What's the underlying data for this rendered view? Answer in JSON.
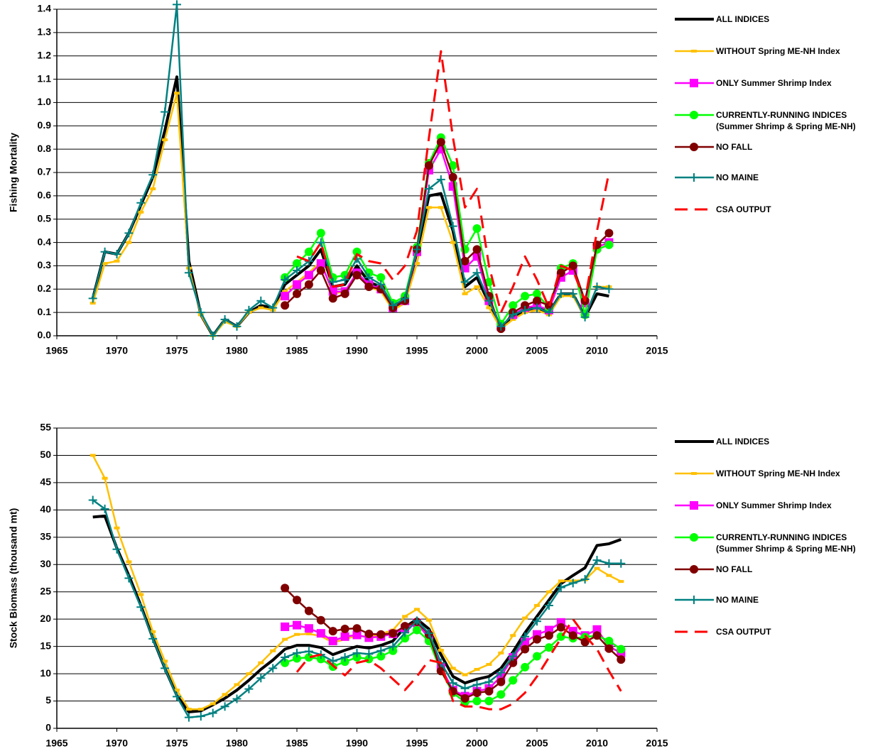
{
  "chart_data": [
    {
      "type": "line",
      "ylabel": "Fishing Mortality",
      "x": [
        1968,
        1969,
        1970,
        1971,
        1972,
        1973,
        1974,
        1975,
        1976,
        1977,
        1978,
        1979,
        1980,
        1981,
        1982,
        1983,
        1984,
        1985,
        1986,
        1987,
        1988,
        1989,
        1990,
        1991,
        1992,
        1993,
        1994,
        1995,
        1996,
        1997,
        1998,
        1999,
        2000,
        2001,
        2002,
        2003,
        2004,
        2005,
        2006,
        2007,
        2008,
        2009,
        2010,
        2011
      ],
      "xlim": [
        1965,
        2015
      ],
      "xticks": [
        1965,
        1970,
        1975,
        1980,
        1985,
        1990,
        1995,
        2000,
        2005,
        2010,
        2015
      ],
      "ylim": [
        0,
        1.4
      ],
      "yticks": [
        {
          "value": 0,
          "label": "0.0"
        },
        0.1,
        0.2,
        0.3,
        0.4,
        0.5,
        0.6,
        0.7,
        0.8,
        0.9,
        {
          "value": 1,
          "label": "1.0"
        },
        1.1,
        1.2,
        1.3,
        1.4
      ],
      "grid": true,
      "legend": "right",
      "series": [
        {
          "name": "ALL INDICES",
          "color": "#000000",
          "width": 4,
          "marker": null,
          "dashed": false,
          "values": [
            0.16,
            0.36,
            0.35,
            0.44,
            0.56,
            0.68,
            0.88,
            1.11,
            0.32,
            0.09,
            0.0,
            0.07,
            0.04,
            0.1,
            0.13,
            0.12,
            0.22,
            0.26,
            0.3,
            0.37,
            0.21,
            0.22,
            0.3,
            0.23,
            0.21,
            0.12,
            0.15,
            0.36,
            0.6,
            0.61,
            0.45,
            0.21,
            0.25,
            0.14,
            0.03,
            0.08,
            0.11,
            0.12,
            0.1,
            0.18,
            0.18,
            0.08,
            0.18,
            0.17
          ]
        },
        {
          "name": "WITHOUT Spring ME-NH Index",
          "color": "#ffc000",
          "width": 2.5,
          "marker": "dash",
          "dashed": false,
          "values": [
            0.14,
            0.31,
            0.32,
            0.4,
            0.53,
            0.63,
            0.84,
            1.04,
            0.29,
            0.09,
            0.0,
            0.06,
            0.04,
            0.1,
            0.12,
            0.11,
            0.19,
            0.23,
            0.27,
            0.32,
            0.18,
            0.19,
            0.26,
            0.21,
            0.19,
            0.11,
            0.14,
            0.31,
            0.55,
            0.55,
            0.4,
            0.18,
            0.21,
            0.12,
            0.03,
            0.07,
            0.1,
            0.11,
            0.09,
            0.17,
            0.17,
            0.08,
            0.21,
            0.21
          ]
        },
        {
          "name": "ONLY Summer Shrimp Index",
          "color": "#ff00ff",
          "width": 2.5,
          "marker": "square",
          "dashed": false,
          "values": [
            null,
            null,
            null,
            null,
            null,
            null,
            null,
            null,
            null,
            null,
            null,
            null,
            null,
            null,
            null,
            null,
            0.17,
            0.22,
            0.26,
            0.31,
            0.19,
            0.19,
            0.27,
            0.22,
            0.2,
            0.12,
            0.15,
            0.36,
            0.71,
            0.8,
            0.64,
            0.29,
            0.34,
            0.15,
            0.04,
            0.09,
            0.12,
            0.13,
            0.11,
            0.25,
            0.28,
            0.14,
            0.38,
            0.4
          ]
        },
        {
          "name": "CURRENTLY-RUNNING INDICES\n(Summer Shrimp & Spring ME-NH)",
          "color": "#00ff00",
          "width": 2.5,
          "marker": "circle",
          "dashed": false,
          "values": [
            null,
            null,
            null,
            null,
            null,
            null,
            null,
            null,
            null,
            null,
            null,
            null,
            null,
            null,
            null,
            null,
            0.25,
            0.31,
            0.36,
            0.44,
            0.25,
            0.26,
            0.36,
            0.27,
            0.25,
            0.14,
            0.17,
            0.38,
            0.74,
            0.85,
            0.73,
            0.37,
            0.46,
            0.23,
            0.05,
            0.13,
            0.17,
            0.18,
            0.12,
            0.29,
            0.31,
            0.09,
            0.37,
            0.39
          ]
        },
        {
          "name": "NO FALL",
          "color": "#800000",
          "width": 2.5,
          "marker": "circle",
          "dashed": false,
          "values": [
            null,
            null,
            null,
            null,
            null,
            null,
            null,
            null,
            null,
            null,
            null,
            null,
            null,
            null,
            null,
            null,
            0.13,
            0.18,
            0.22,
            0.28,
            0.16,
            0.18,
            0.26,
            0.21,
            0.2,
            0.12,
            0.15,
            0.37,
            0.73,
            0.83,
            0.68,
            0.32,
            0.37,
            0.17,
            0.03,
            0.1,
            0.13,
            0.15,
            0.13,
            0.27,
            0.3,
            0.15,
            0.39,
            0.44
          ]
        },
        {
          "name": "NO MAINE",
          "color": "#008080",
          "width": 2.5,
          "marker": "plus",
          "dashed": false,
          "values": [
            0.16,
            0.36,
            0.35,
            0.44,
            0.57,
            0.69,
            0.96,
            1.42,
            0.27,
            0.1,
            0.0,
            0.07,
            0.04,
            0.11,
            0.15,
            0.12,
            0.24,
            0.28,
            0.32,
            0.4,
            0.23,
            0.24,
            0.33,
            0.25,
            0.22,
            0.13,
            0.16,
            0.37,
            0.63,
            0.67,
            0.47,
            0.23,
            0.27,
            0.15,
            0.04,
            0.09,
            0.11,
            0.12,
            0.1,
            0.18,
            0.18,
            0.08,
            0.21,
            0.2
          ]
        },
        {
          "name": "CSA OUTPUT",
          "color": "#ff0000",
          "width": 3,
          "marker": null,
          "dashed": true,
          "values": [
            null,
            null,
            null,
            null,
            null,
            null,
            null,
            null,
            null,
            null,
            null,
            null,
            null,
            null,
            null,
            null,
            null,
            0.34,
            0.32,
            0.4,
            0.21,
            0.22,
            0.35,
            0.32,
            0.31,
            0.24,
            0.3,
            0.45,
            0.85,
            1.22,
            0.85,
            0.55,
            0.63,
            0.3,
            0.1,
            0.21,
            0.34,
            0.24,
            0.12,
            0.3,
            0.28,
            0.15,
            0.45,
            0.7
          ]
        }
      ]
    },
    {
      "type": "line",
      "ylabel": "Stock Biomass (thousand mt)",
      "x": [
        1968,
        1969,
        1970,
        1971,
        1972,
        1973,
        1974,
        1975,
        1976,
        1977,
        1978,
        1979,
        1980,
        1981,
        1982,
        1983,
        1984,
        1985,
        1986,
        1987,
        1988,
        1989,
        1990,
        1991,
        1992,
        1993,
        1994,
        1995,
        1996,
        1997,
        1998,
        1999,
        2000,
        2001,
        2002,
        2003,
        2004,
        2005,
        2006,
        2007,
        2008,
        2009,
        2010,
        2011,
        2012
      ],
      "xlim": [
        1965,
        2015
      ],
      "xticks": [
        1965,
        1970,
        1975,
        1980,
        1985,
        1990,
        1995,
        2000,
        2005,
        2010,
        2015
      ],
      "ylim": [
        0,
        55
      ],
      "yticks": [
        0,
        5,
        10,
        15,
        20,
        25,
        30,
        35,
        40,
        45,
        50,
        55
      ],
      "grid": true,
      "legend": "right",
      "series": [
        {
          "name": "ALL INDICES",
          "color": "#000000",
          "width": 4,
          "marker": null,
          "dashed": false,
          "values": [
            38.7,
            38.9,
            33,
            28,
            22.5,
            16.5,
            11,
            6,
            3,
            3.2,
            4.3,
            5.5,
            7,
            8.8,
            10.8,
            12.5,
            14.5,
            15.2,
            15.2,
            14.8,
            13.5,
            14.3,
            15,
            14.7,
            15.2,
            16,
            18.5,
            20,
            18.2,
            13.5,
            9.5,
            8.3,
            9,
            9.5,
            11,
            14,
            17.5,
            20.5,
            23.5,
            26.5,
            28,
            29.4,
            33.5,
            33.8,
            34.6
          ]
        },
        {
          "name": "WITHOUT Spring ME-NH Index",
          "color": "#ffc000",
          "width": 2.5,
          "marker": "dash",
          "dashed": false,
          "values": [
            50,
            45.8,
            36.7,
            30.5,
            24.5,
            17.7,
            12.3,
            7,
            3.5,
            3.5,
            4.5,
            6.2,
            8,
            10,
            12,
            14.2,
            16.3,
            17.2,
            17.3,
            16.9,
            15.7,
            16.3,
            17,
            16.7,
            17.3,
            18,
            20.5,
            21.8,
            19.8,
            14.3,
            11,
            9.8,
            10.8,
            11.7,
            13.8,
            17,
            20.2,
            22.5,
            25,
            27,
            27,
            27.2,
            29.3,
            28,
            26.9
          ]
        },
        {
          "name": "ONLY Summer Shrimp Index",
          "color": "#ff00ff",
          "width": 2.5,
          "marker": "square",
          "dashed": false,
          "values": [
            null,
            null,
            null,
            null,
            null,
            null,
            null,
            null,
            null,
            null,
            null,
            null,
            null,
            null,
            null,
            null,
            18.6,
            18.9,
            18.3,
            17.4,
            16,
            16.8,
            17.1,
            16.6,
            16.8,
            17.3,
            18.3,
            19.3,
            16.5,
            11.2,
            7,
            5.9,
            6.8,
            7.3,
            9.5,
            13,
            15.8,
            17.2,
            18,
            19.4,
            17.8,
            17,
            18.1,
            15,
            13.8
          ]
        },
        {
          "name": "CURRENTLY-RUNNING INDICES\n(Summer Shrimp & Spring ME-NH)",
          "color": "#00ff00",
          "width": 2.5,
          "marker": "circle",
          "dashed": false,
          "values": [
            null,
            null,
            null,
            null,
            null,
            null,
            null,
            null,
            null,
            null,
            null,
            null,
            null,
            null,
            null,
            null,
            12,
            12.8,
            13,
            12.7,
            11.3,
            12.2,
            13,
            12.7,
            13.2,
            14.2,
            16.5,
            18,
            16,
            10.5,
            6.5,
            4.8,
            5,
            5,
            6.2,
            8.8,
            11.2,
            13.2,
            14.8,
            16.8,
            16.5,
            16.7,
            17,
            16,
            14.5
          ]
        },
        {
          "name": "NO FALL",
          "color": "#800000",
          "width": 2.5,
          "marker": "circle",
          "dashed": false,
          "values": [
            null,
            null,
            null,
            null,
            null,
            null,
            null,
            null,
            null,
            null,
            null,
            null,
            null,
            null,
            null,
            null,
            25.7,
            23.5,
            21.5,
            19.8,
            17.8,
            18.2,
            18.3,
            17.3,
            17.2,
            17.4,
            18.7,
            19.5,
            17.2,
            10.5,
            6.8,
            5.5,
            6.5,
            6.8,
            8.5,
            12,
            14.5,
            16.3,
            17,
            18.5,
            17,
            15.8,
            17,
            14.6,
            12.6
          ]
        },
        {
          "name": "NO MAINE",
          "color": "#008080",
          "width": 2.5,
          "marker": "plus",
          "dashed": false,
          "values": [
            41.8,
            40.2,
            32.8,
            27.5,
            22.2,
            16.4,
            11,
            5.8,
            2,
            2.2,
            2.8,
            4,
            5.4,
            7.2,
            9.2,
            11,
            13,
            13.8,
            14.1,
            13.5,
            12.3,
            13,
            13.8,
            13.6,
            14.2,
            15,
            17.5,
            19.7,
            17.4,
            12,
            8.3,
            7.3,
            8,
            8.5,
            10.2,
            13.2,
            16.8,
            19.6,
            22.5,
            25.8,
            26.6,
            27.3,
            30.8,
            30.2,
            30.2
          ]
        },
        {
          "name": "CSA OUTPUT",
          "color": "#ff0000",
          "width": 3,
          "marker": null,
          "dashed": true,
          "values": [
            null,
            null,
            null,
            null,
            null,
            null,
            null,
            null,
            null,
            null,
            null,
            null,
            null,
            null,
            null,
            null,
            null,
            10.3,
            13,
            13.5,
            11.5,
            9.7,
            12,
            12.5,
            11,
            9,
            7,
            9.5,
            12.5,
            12,
            5,
            4,
            4,
            3.5,
            3.5,
            4.5,
            6.5,
            9.5,
            13,
            16.5,
            20,
            17,
            14.5,
            10.5,
            6.8
          ]
        }
      ]
    }
  ]
}
